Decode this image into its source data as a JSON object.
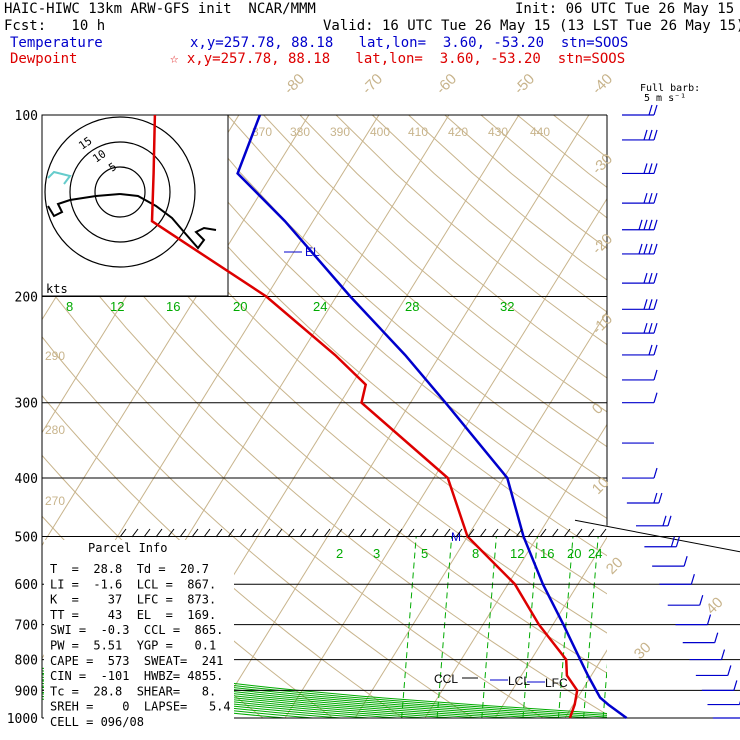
{
  "header": {
    "line1_left": "HAIC-HIWC 13km ARW-GFS init  NCAR/MMM",
    "line1_right": "Init: 06 UTC Tue 26 May 15",
    "line2_left": "Fcst:   10 h",
    "line2_right": "Valid: 16 UTC Tue 26 May 15 (13 LST Tue 26 May 15)",
    "temp_label": "Temperature",
    "temp_info": "x,y=257.78, 88.18   lat,lon=  3.60, -53.20  stn=SOOS",
    "dew_label": "Dewpoint",
    "dew_info": "☆ x,y=257.78, 88.18   lat,lon=  3.60, -53.20  stn=SOOS",
    "barb_label_1": "Full barb:",
    "barb_label_2": "5 m s⁻¹"
  },
  "colors": {
    "temperature": "#0000cc",
    "dewpoint": "#dd0000",
    "isotherm": "#c8b48c",
    "mixing": "#00aa00",
    "hodo_cyan": "#66cccc"
  },
  "chart_data": {
    "type": "skew-t",
    "pressure_levels": [
      100,
      200,
      300,
      400,
      500,
      600,
      700,
      800,
      900,
      1000
    ],
    "pressure_range": [
      1000,
      100
    ],
    "isotherm_labels": [
      "-80",
      "-70",
      "-60",
      "-50",
      "-40",
      "-30",
      "-20",
      "-10",
      "0",
      "10",
      "20",
      "30",
      "40"
    ],
    "theta_labels": [
      "370",
      "380",
      "390",
      "400",
      "410",
      "420",
      "430",
      "440",
      "290",
      "280",
      "270"
    ],
    "theta_e_labels": [
      "20",
      "24",
      "28",
      "32"
    ],
    "mixing_ratio_labels": [
      "8",
      "12",
      "16",
      "2",
      "3",
      "5",
      "8",
      "12",
      "16",
      "20",
      "24"
    ],
    "hodograph": {
      "rings": [
        "5",
        "10",
        "15"
      ],
      "units": "kts"
    },
    "level_labels": [
      "EL",
      "M",
      "CCL",
      "LCL",
      "LFC"
    ],
    "temperature_profile": [
      {
        "p": 1000,
        "t": 28.8
      },
      {
        "p": 950,
        "t": 25.0
      },
      {
        "p": 925,
        "t": 23.2
      },
      {
        "p": 900,
        "t": 22.0
      },
      {
        "p": 850,
        "t": 19.5
      },
      {
        "p": 800,
        "t": 17.0
      },
      {
        "p": 700,
        "t": 11.5
      },
      {
        "p": 600,
        "t": 5.0
      },
      {
        "p": 500,
        "t": -2.0
      },
      {
        "p": 400,
        "t": -9.5
      },
      {
        "p": 300,
        "t": -25.0
      },
      {
        "p": 250,
        "t": -35.0
      },
      {
        "p": 200,
        "t": -48.0
      },
      {
        "p": 150,
        "t": -64.0
      },
      {
        "p": 125,
        "t": -75.0
      },
      {
        "p": 100,
        "t": -77.0
      }
    ],
    "dewpoint_profile": [
      {
        "p": 1000,
        "t": 20.7
      },
      {
        "p": 950,
        "t": 20.2
      },
      {
        "p": 900,
        "t": 19.3
      },
      {
        "p": 850,
        "t": 16.5
      },
      {
        "p": 800,
        "t": 15.0
      },
      {
        "p": 700,
        "t": 8.0
      },
      {
        "p": 600,
        "t": 1.0
      },
      {
        "p": 500,
        "t": -10.0
      },
      {
        "p": 400,
        "t": -18.0
      },
      {
        "p": 300,
        "t": -37.0
      },
      {
        "p": 280,
        "t": -38.0
      },
      {
        "p": 250,
        "t": -45.0
      },
      {
        "p": 200,
        "t": -60.0
      },
      {
        "p": 150,
        "t": -83.0
      },
      {
        "p": 125,
        "t": -87.0
      },
      {
        "p": 100,
        "t": -92.0
      }
    ],
    "wind_barbs": [
      {
        "p": 100,
        "n": 2
      },
      {
        "p": 110,
        "n": 3
      },
      {
        "p": 125,
        "n": 3
      },
      {
        "p": 140,
        "n": 3
      },
      {
        "p": 155,
        "n": 4
      },
      {
        "p": 170,
        "n": 4
      },
      {
        "p": 190,
        "n": 3
      },
      {
        "p": 210,
        "n": 3
      },
      {
        "p": 230,
        "n": 3
      },
      {
        "p": 250,
        "n": 2
      },
      {
        "p": 275,
        "n": 1
      },
      {
        "p": 300,
        "n": 1
      },
      {
        "p": 350,
        "n": 0
      },
      {
        "p": 400,
        "n": 1
      },
      {
        "p": 440,
        "n": 2
      },
      {
        "p": 480,
        "n": 2
      },
      {
        "p": 520,
        "n": 2
      },
      {
        "p": 560,
        "n": 1
      },
      {
        "p": 600,
        "n": 1
      },
      {
        "p": 650,
        "n": 1
      },
      {
        "p": 700,
        "n": 1
      },
      {
        "p": 750,
        "n": 1
      },
      {
        "p": 800,
        "n": 1
      },
      {
        "p": 850,
        "n": 1
      },
      {
        "p": 900,
        "n": 1
      },
      {
        "p": 950,
        "n": 1
      },
      {
        "p": 1000,
        "n": 1
      }
    ]
  },
  "parcel_info": {
    "title": "Parcel Info",
    "rows": [
      "T  =  28.8  Td =  20.7",
      "LI =  -1.6  LCL =  867.",
      "K  =    37  LFC =  873.",
      "TT =    43  EL  =  169.",
      "SWI =  -0.3  CCL =  865.",
      "PW =  5.51  YGP =   0.1",
      "CAPE =  573  SWEAT=  241",
      "CIN =  -101  HWBZ= 4855.",
      "Tc =  28.8  SHEAR=   8.",
      "SREH =    0  LAPSE=   5.4",
      "CELL = 096/08"
    ]
  }
}
